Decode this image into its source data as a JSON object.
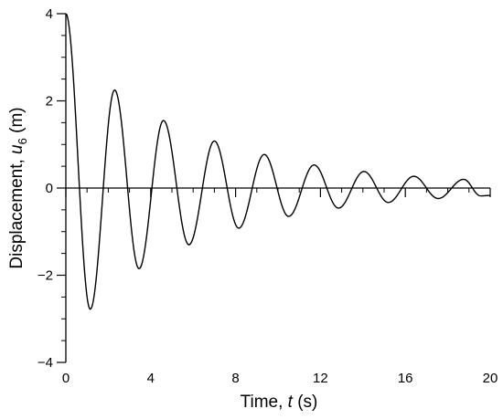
{
  "chart_data": {
    "type": "line",
    "xlabel": {
      "prefix": "Time, ",
      "var": "t",
      "suffix": " (s)"
    },
    "ylabel": {
      "prefix": "Displacement, ",
      "var": "u",
      "sub": "6",
      "suffix": " (m)"
    },
    "xlim": [
      0,
      20
    ],
    "ylim": [
      -4,
      4
    ],
    "x_ticks": [
      0,
      4,
      8,
      12,
      16,
      20
    ],
    "y_ticks": [
      -4,
      -2,
      0,
      2,
      4
    ],
    "x_tick_labels": [
      "0",
      "4",
      "8",
      "12",
      "16",
      "20"
    ],
    "y_tick_labels": [
      "−4",
      "−2",
      "0",
      "2",
      "4"
    ],
    "x_minor_step": 1,
    "y_minor_step": 0.5,
    "grid": false,
    "series": [
      {
        "color": "#000000",
        "extrema": [
          [
            0.0,
            4.0
          ],
          [
            1.15,
            -2.78
          ],
          [
            2.3,
            2.25
          ],
          [
            3.45,
            -1.85
          ],
          [
            4.6,
            1.55
          ],
          [
            5.8,
            -1.3
          ],
          [
            7.0,
            1.08
          ],
          [
            8.15,
            -0.92
          ],
          [
            9.35,
            0.77
          ],
          [
            10.5,
            -0.65
          ],
          [
            11.7,
            0.53
          ],
          [
            12.85,
            -0.46
          ],
          [
            14.05,
            0.38
          ],
          [
            15.2,
            -0.33
          ],
          [
            16.4,
            0.27
          ],
          [
            17.55,
            -0.24
          ],
          [
            18.75,
            0.2
          ],
          [
            19.55,
            -0.18
          ],
          [
            20.0,
            -0.17
          ]
        ]
      }
    ]
  }
}
